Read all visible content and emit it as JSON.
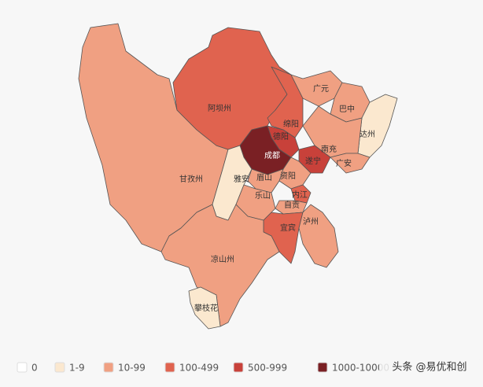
{
  "regions": [
    {
      "name": "甘孜州",
      "color": "#f0a082"
    },
    {
      "name": "阿坝州",
      "color": "#e0634f"
    },
    {
      "name": "绵阳",
      "color": "#e0634f"
    },
    {
      "name": "德阳",
      "color": "#c8413a"
    },
    {
      "name": "成都",
      "color": "#7a2024"
    },
    {
      "name": "雅安",
      "color": "#fbe8cf"
    },
    {
      "name": "广元",
      "color": "#f0a082"
    },
    {
      "name": "巴中",
      "color": "#f0a082"
    },
    {
      "name": "达州",
      "color": "#fbe8cf"
    },
    {
      "name": "南充",
      "color": "#f0a082"
    },
    {
      "name": "广安",
      "color": "#f0a082"
    },
    {
      "name": "遂宁",
      "color": "#c8413a"
    },
    {
      "name": "资阳",
      "color": "#f0a082"
    },
    {
      "name": "眉山",
      "color": "#f0a082"
    },
    {
      "name": "乐山",
      "color": "#f0a082"
    },
    {
      "name": "内江",
      "color": "#e0634f"
    },
    {
      "name": "自贡",
      "color": "#f0a082"
    },
    {
      "name": "宜宾",
      "color": "#e0634f"
    },
    {
      "name": "泸州",
      "color": "#f0a082"
    },
    {
      "name": "凉山州",
      "color": "#f0a082"
    },
    {
      "name": "攀枝花",
      "color": "#fbe8cf"
    }
  ],
  "legend": [
    {
      "label": "0",
      "color": "#ffffff"
    },
    {
      "label": "1-9",
      "color": "#fbe8cf"
    },
    {
      "label": "10-99",
      "color": "#f0a082"
    },
    {
      "label": "100-499",
      "color": "#e0634f"
    },
    {
      "label": "500-999",
      "color": "#c8413a"
    },
    {
      "label": "1000-10000",
      "color": "#7a2024"
    }
  ],
  "watermark": "头条 @易优和创"
}
